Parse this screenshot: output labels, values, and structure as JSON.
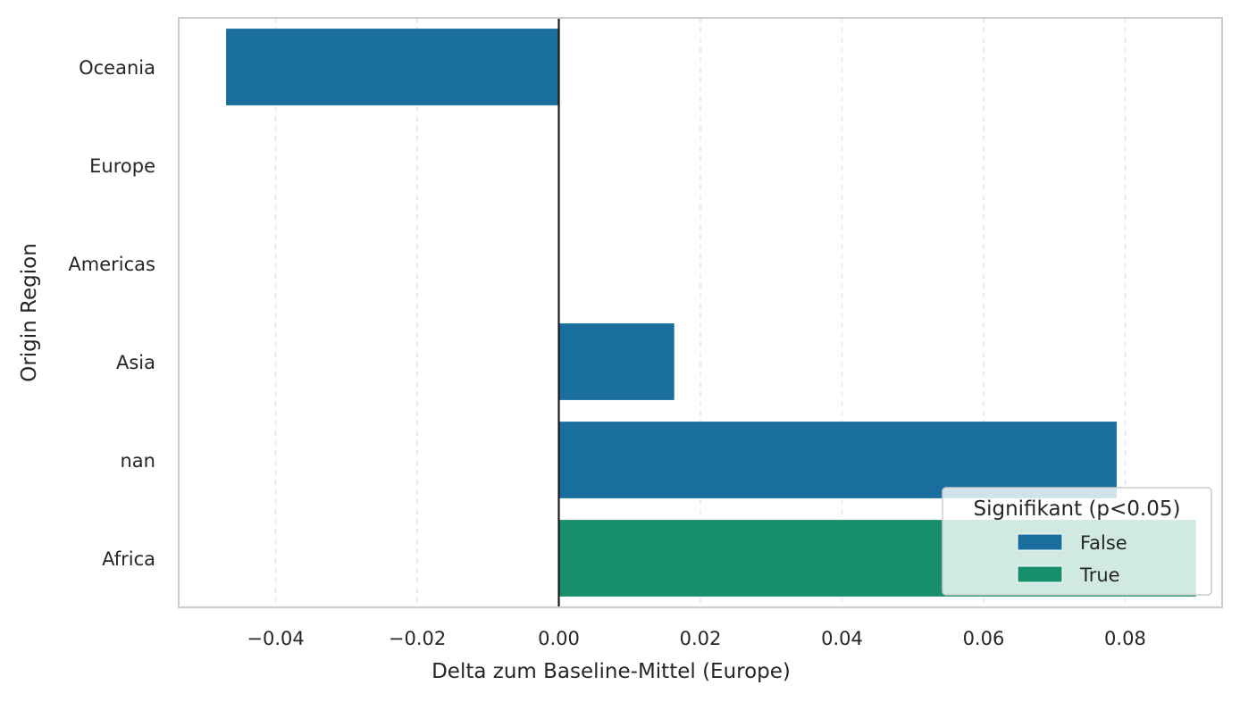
{
  "chart_data": {
    "type": "bar",
    "orientation": "horizontal",
    "categories": [
      "Oceania",
      "Europe",
      "Americas",
      "Asia",
      "nan",
      "Africa"
    ],
    "series": [
      {
        "name": "False",
        "values": [
          -0.047,
          null,
          null,
          0.0163,
          0.0788,
          null
        ],
        "color": "#1a6e9e"
      },
      {
        "name": "True",
        "values": [
          null,
          null,
          null,
          null,
          null,
          0.09
        ],
        "color": "#178f6c"
      }
    ],
    "xlabel": "Delta zum Baseline-Mittel (Europe)",
    "ylabel": "Origin Region",
    "xlim": [
      -0.0537,
      0.0937
    ],
    "x_ticks": [
      -0.04,
      -0.02,
      0.0,
      0.02,
      0.04,
      0.06,
      0.08
    ],
    "x_tick_labels": [
      "−0.04",
      "−0.02",
      "0.00",
      "0.02",
      "0.04",
      "0.06",
      "0.08"
    ],
    "grid": "x-dashed",
    "reference_line": 0,
    "legend": {
      "title": "Signifikant (p<0.05)",
      "entries": [
        "False",
        "True"
      ],
      "placement": "lower-right"
    }
  }
}
